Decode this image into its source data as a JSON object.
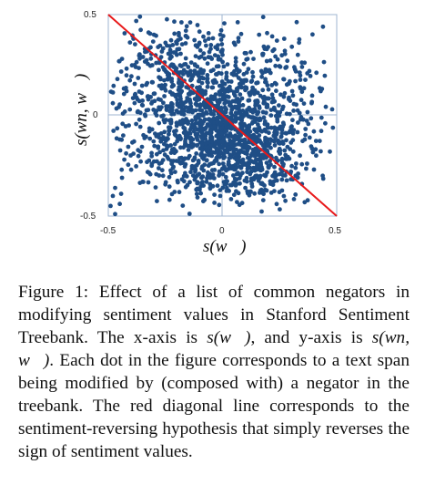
{
  "chart_data": {
    "type": "scatter",
    "title": "",
    "xlabel": "s(w⃗)",
    "ylabel": "s(wn, w⃗)",
    "xlim": [
      -0.5,
      0.5
    ],
    "ylim": [
      -0.5,
      0.5
    ],
    "x_ticks": [
      "-0.5",
      "0",
      "0.5"
    ],
    "y_ticks": [
      "0.5",
      "0",
      "-0.5"
    ],
    "grid": "crosshair lines at x=0 and y=0",
    "point_color": "#1f4e86",
    "reference_line": {
      "label": "sentiment-reversing hypothesis y = -x",
      "from": [
        -0.5,
        0.5
      ],
      "to": [
        0.5,
        -0.5
      ],
      "color": "#e8191a"
    },
    "points": [
      [
        -0.47,
        -0.49
      ],
      [
        -0.49,
        -0.45
      ],
      [
        -0.48,
        -0.4
      ],
      [
        -0.47,
        -0.36
      ],
      [
        -0.45,
        -0.44
      ],
      [
        -0.44,
        -0.31
      ],
      [
        -0.43,
        -0.22
      ],
      [
        -0.45,
        -0.12
      ],
      [
        -0.48,
        0.06
      ],
      [
        -0.46,
        0.18
      ],
      [
        -0.44,
        0.28
      ],
      [
        -0.42,
        0.12
      ],
      [
        -0.41,
        -0.05
      ],
      [
        -0.4,
        -0.27
      ],
      [
        -0.39,
        0.38
      ],
      [
        -0.38,
        0.24
      ],
      [
        -0.37,
        0.02
      ],
      [
        -0.36,
        -0.18
      ],
      [
        -0.35,
        -0.33
      ],
      [
        -0.34,
        0.33
      ],
      [
        -0.33,
        0.16
      ],
      [
        -0.32,
        -0.08
      ],
      [
        -0.31,
        -0.25
      ],
      [
        -0.3,
        0.4
      ],
      [
        -0.29,
        0.26
      ],
      [
        -0.28,
        0.08
      ],
      [
        -0.27,
        -0.13
      ],
      [
        -0.26,
        -0.3
      ],
      [
        -0.25,
        0.36
      ],
      [
        -0.24,
        0.2
      ],
      [
        -0.23,
        0.02
      ],
      [
        -0.22,
        -0.17
      ],
      [
        -0.21,
        -0.38
      ],
      [
        -0.2,
        0.3
      ],
      [
        -0.19,
        0.14
      ],
      [
        -0.18,
        -0.04
      ],
      [
        -0.17,
        -0.22
      ],
      [
        -0.16,
        0.42
      ],
      [
        -0.15,
        0.24
      ],
      [
        -0.14,
        0.06
      ],
      [
        -0.13,
        -0.12
      ],
      [
        -0.12,
        -0.28
      ],
      [
        -0.11,
        0.34
      ],
      [
        -0.1,
        0.18
      ],
      [
        -0.09,
        0.0
      ],
      [
        -0.08,
        -0.16
      ],
      [
        -0.07,
        -0.33
      ],
      [
        -0.06,
        0.38
      ],
      [
        -0.05,
        0.22
      ],
      [
        -0.04,
        0.08
      ],
      [
        -0.03,
        -0.06
      ],
      [
        -0.02,
        -0.2
      ],
      [
        -0.01,
        -0.4
      ],
      [
        0.0,
        0.3
      ],
      [
        0.01,
        0.12
      ],
      [
        0.02,
        -0.02
      ],
      [
        0.03,
        -0.14
      ],
      [
        0.04,
        -0.26
      ],
      [
        0.05,
        0.36
      ],
      [
        0.06,
        0.2
      ],
      [
        0.07,
        0.04
      ],
      [
        0.08,
        -0.1
      ],
      [
        0.09,
        -0.22
      ],
      [
        0.1,
        -0.36
      ],
      [
        0.11,
        0.28
      ],
      [
        0.12,
        0.1
      ],
      [
        0.13,
        -0.04
      ],
      [
        0.14,
        -0.18
      ],
      [
        0.15,
        -0.3
      ],
      [
        0.16,
        0.4
      ],
      [
        0.17,
        0.22
      ],
      [
        0.18,
        0.06
      ],
      [
        0.19,
        -0.08
      ],
      [
        0.2,
        -0.2
      ],
      [
        0.21,
        -0.34
      ],
      [
        0.22,
        0.32
      ],
      [
        0.23,
        0.16
      ],
      [
        0.24,
        -0.02
      ],
      [
        0.25,
        -0.14
      ],
      [
        0.26,
        -0.27
      ],
      [
        0.27,
        0.38
      ],
      [
        0.28,
        0.24
      ],
      [
        0.29,
        0.08
      ],
      [
        0.3,
        -0.06
      ],
      [
        0.31,
        -0.18
      ],
      [
        0.32,
        -0.3
      ],
      [
        0.33,
        0.3
      ],
      [
        0.34,
        0.14
      ],
      [
        0.35,
        -0.02
      ],
      [
        0.36,
        -0.12
      ],
      [
        0.37,
        -0.24
      ],
      [
        0.38,
        0.22
      ],
      [
        0.39,
        0.06
      ],
      [
        0.4,
        -0.08
      ],
      [
        0.41,
        -0.2
      ],
      [
        0.43,
        0.12
      ],
      [
        0.44,
        0.44
      ],
      [
        0.45,
        -0.04
      ],
      [
        0.47,
        -0.18
      ],
      [
        0.48,
        0.03
      ]
    ],
    "density_clusters": [
      {
        "cx": 0.0,
        "cy": -0.08,
        "sx": 0.15,
        "sy": 0.16,
        "rho": -0.2,
        "n": 900
      },
      {
        "cx": -0.12,
        "cy": 0.12,
        "sx": 0.17,
        "sy": 0.17,
        "rho": -0.1,
        "n": 320
      },
      {
        "cx": 0.16,
        "cy": -0.18,
        "sx": 0.14,
        "sy": 0.13,
        "rho": -0.1,
        "n": 280
      },
      {
        "cx": -0.25,
        "cy": 0.25,
        "sx": 0.14,
        "sy": 0.14,
        "rho": 0.0,
        "n": 110
      },
      {
        "cx": 0.25,
        "cy": 0.18,
        "sx": 0.12,
        "sy": 0.12,
        "rho": 0.0,
        "n": 110
      },
      {
        "cx": -0.28,
        "cy": -0.22,
        "sx": 0.12,
        "sy": 0.13,
        "rho": 0.0,
        "n": 90
      }
    ]
  },
  "caption": {
    "label": "Figure 1:",
    "parts": [
      "Effect of a list of common negators in modifying sentiment values in Stanford Senti­ment Treebank. The x-axis is ",
      "s(w⃗)",
      ", and y-axis is ",
      "s(wn, w⃗)",
      ". Each dot in the figure corresponds to a text span being modified by (composed with) a negator in the treebank. The red diagonal line corresponds to the sentiment-reversing hypothesis that simply reverses the sign of sentiment values."
    ]
  }
}
